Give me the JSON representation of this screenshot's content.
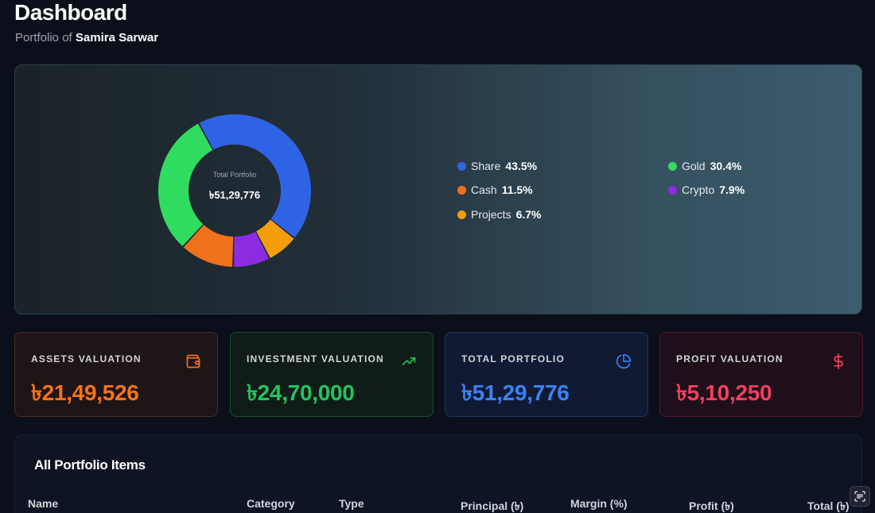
{
  "header": {
    "title": "Dashboard",
    "subtitle_prefix": "Portfolio of",
    "owner": "Samira Sarwar"
  },
  "chart_data": {
    "type": "pie",
    "center_label": "Total Portfolio",
    "center_value": "৳51,29,776",
    "categories": [
      "Share",
      "Projects",
      "Crypto",
      "Cash",
      "Gold"
    ],
    "values": [
      43.5,
      6.7,
      7.9,
      11.5,
      30.4
    ],
    "colors": [
      "#2f63e6",
      "#f59e0b",
      "#8b2be2",
      "#f0711c",
      "#2fdc60"
    ],
    "legend_placement": "right"
  },
  "legend": {
    "items": [
      {
        "name": "Share",
        "pct": "43.5%",
        "color": "#2f63e6"
      },
      {
        "name": "Gold",
        "pct": "30.4%",
        "color": "#2fdc60"
      },
      {
        "name": "Cash",
        "pct": "11.5%",
        "color": "#f0711c"
      },
      {
        "name": "Crypto",
        "pct": "7.9%",
        "color": "#8b2be2"
      },
      {
        "name": "Projects",
        "pct": "6.7%",
        "color": "#f59e0b"
      }
    ]
  },
  "stats": {
    "assets": {
      "label": "ASSETS VALUATION",
      "value": "৳21,49,526",
      "icon": "wallet-icon",
      "color": "#f97316"
    },
    "investment": {
      "label": "INVESTMENT VALUATION",
      "value": "৳24,70,000",
      "icon": "trending-up-icon",
      "color": "#22c55e"
    },
    "total": {
      "label": "TOTAL PORTFOLIO",
      "value": "৳51,29,776",
      "icon": "pie-chart-icon",
      "color": "#3b82f6"
    },
    "profit": {
      "label": "PROFIT VALUATION",
      "value": "৳5,10,250",
      "icon": "dollar-icon",
      "color": "#f43f5e"
    }
  },
  "table": {
    "title": "All Portfolio Items",
    "columns": [
      "Name",
      "Category",
      "Type",
      "Principal (৳)",
      "Margin (%)",
      "Profit (৳)",
      "Total (৳)"
    ]
  },
  "floating_button": {
    "icon": "scan-text-icon"
  }
}
